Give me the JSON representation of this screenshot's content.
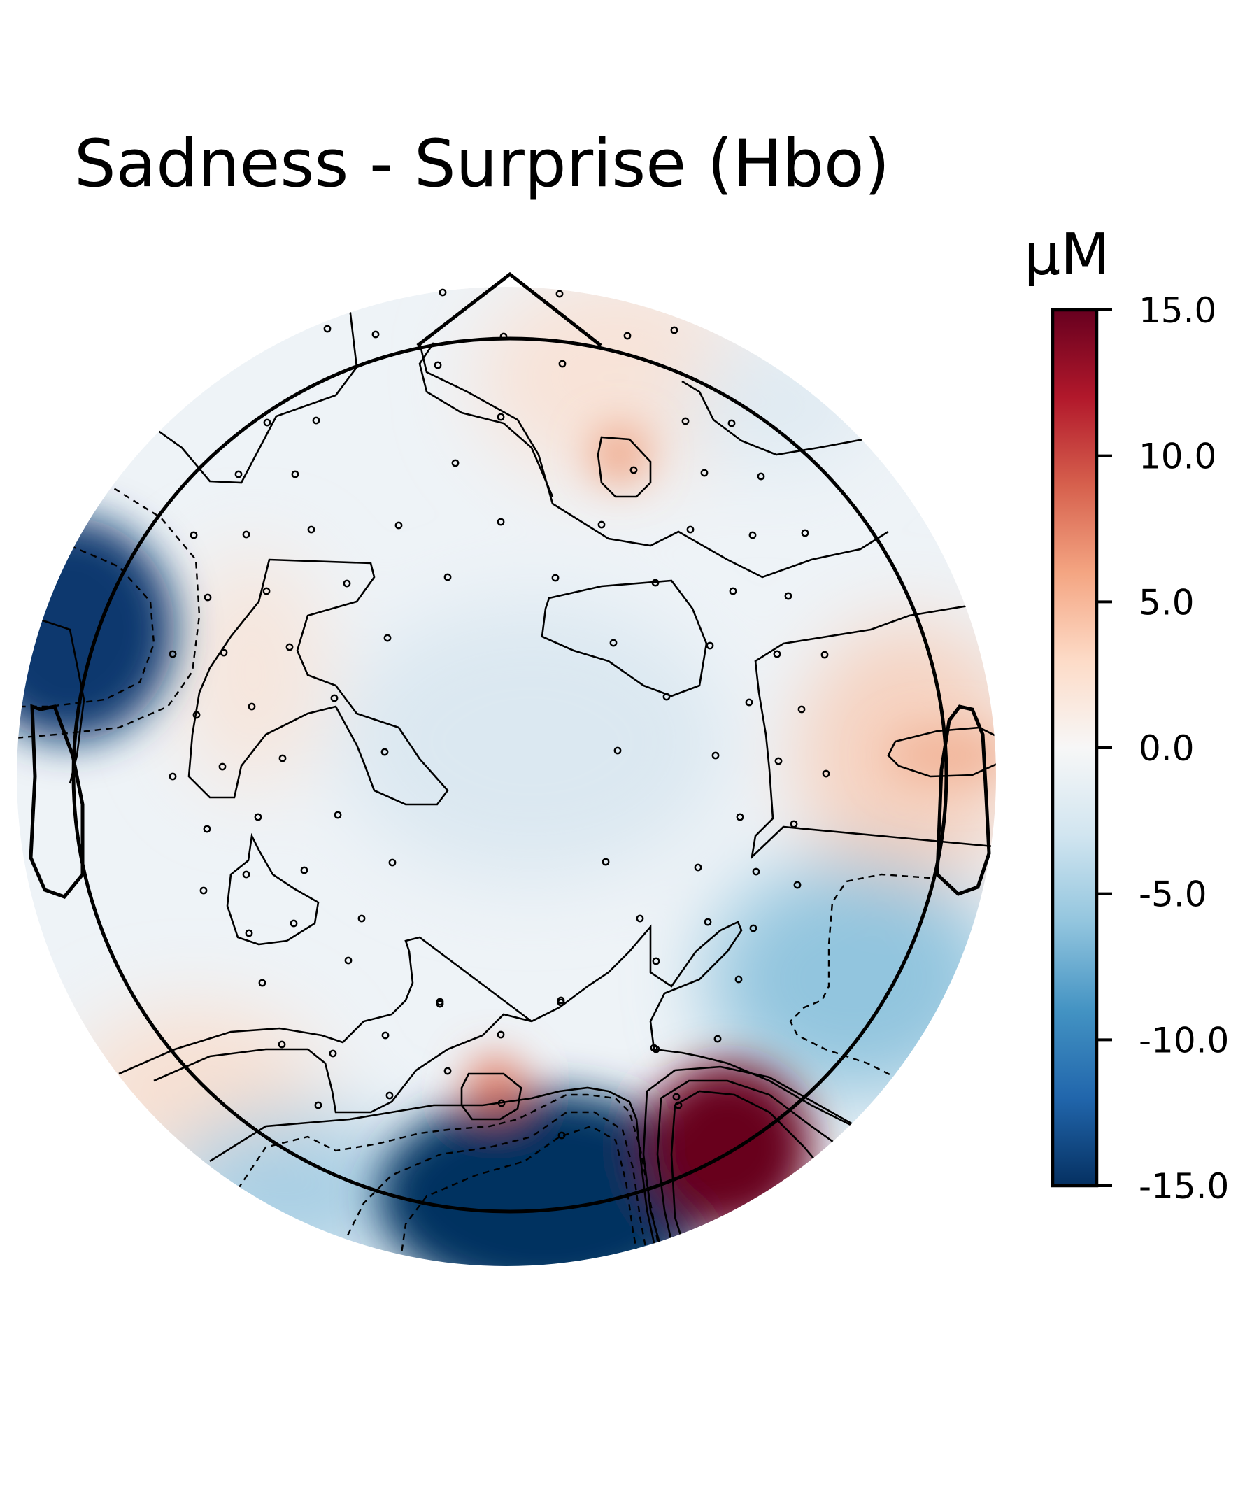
{
  "chart_data": {
    "type": "heatmap",
    "subtype": "topomap",
    "title": "Sadness - Surprise (Hbo)",
    "colorbar": {
      "label": "µM",
      "vmin": -15.0,
      "vmax": 15.0,
      "ticks": [
        "15.0",
        "10.0",
        "5.0",
        "0.0",
        "-5.0",
        "-10.0",
        "-15.0"
      ],
      "tick_values": [
        15,
        10,
        5,
        0,
        -5,
        -10,
        -15
      ],
      "colormap": "RdBu_r",
      "colors": [
        "#053061",
        "#2166ac",
        "#4393c3",
        "#92c5de",
        "#d1e5f0",
        "#f7f7f7",
        "#fddbc7",
        "#f4a582",
        "#d6604d",
        "#b2182b",
        "#67001f"
      ]
    },
    "regions": [
      {
        "name": "left-temporal",
        "value": -13
      },
      {
        "name": "right-occipital",
        "value": 15
      },
      {
        "name": "left-occipital",
        "value": -15
      },
      {
        "name": "right-posterior-temporal",
        "value": -7
      },
      {
        "name": "right-temporal",
        "value": 4
      },
      {
        "name": "right-frontal",
        "value": 5
      },
      {
        "name": "left-occipital-small",
        "value": 8
      }
    ],
    "contour_levels": [
      -10,
      -5,
      0,
      5,
      10
    ]
  }
}
